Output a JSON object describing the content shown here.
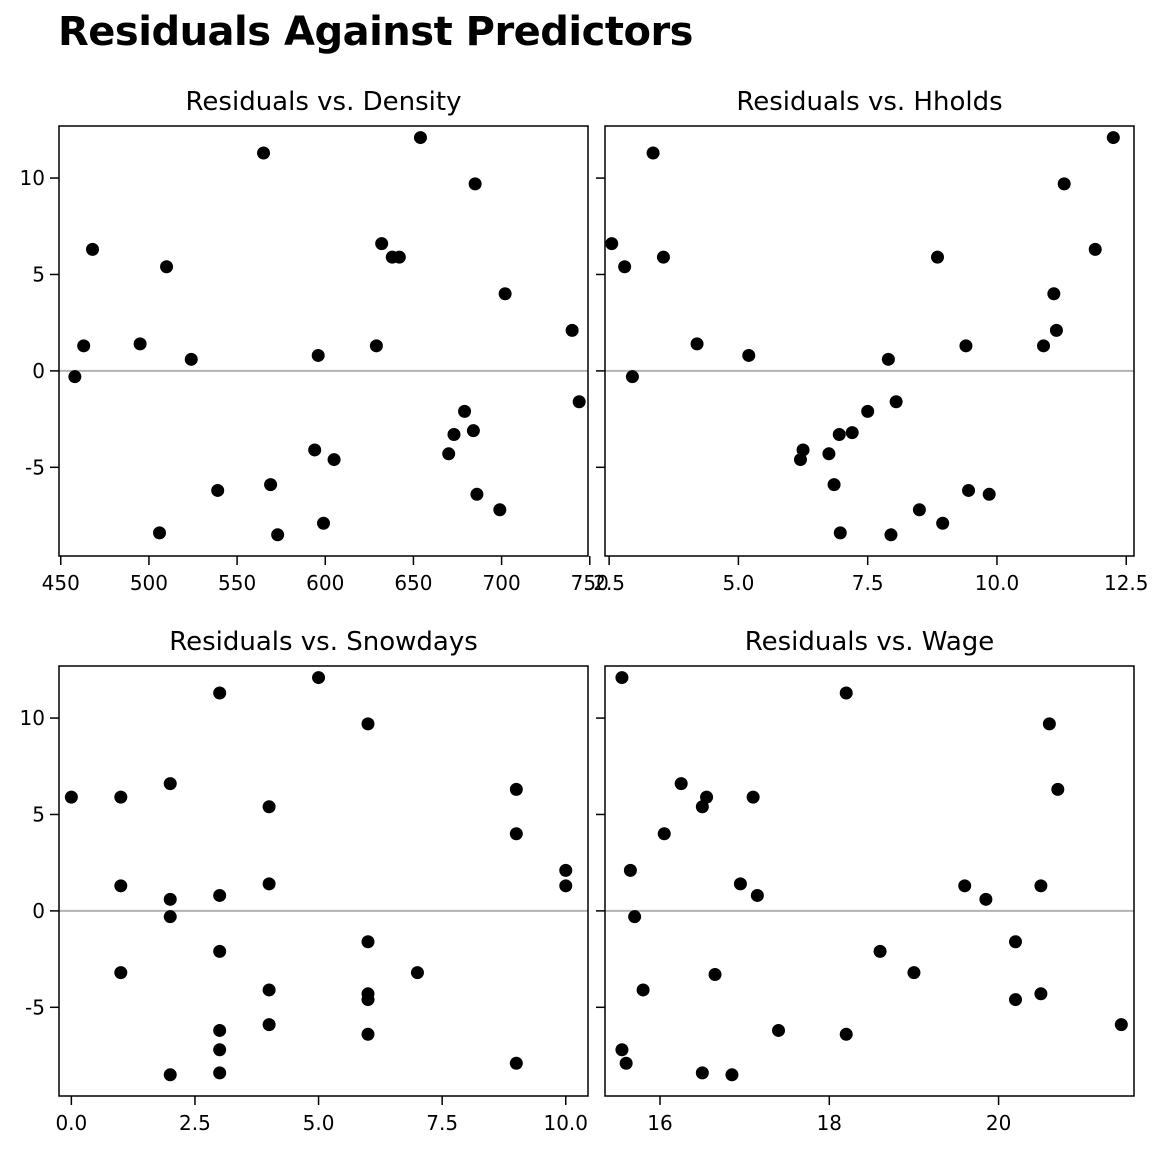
{
  "title": "Residuals Against Predictors",
  "colors": {
    "point": "#000000",
    "zero_line": "#b3b3b3",
    "frame": "#000000",
    "background": "#ffffff"
  },
  "chart_data": [
    {
      "type": "scatter",
      "title": "Residuals vs. Density",
      "xlabel": "",
      "ylabel": "",
      "xlim": [
        449,
        749
      ],
      "ylim": [
        -9.6,
        12.7
      ],
      "xticks": [
        450,
        500,
        550,
        600,
        650,
        700,
        750
      ],
      "xtick_labels": [
        "450",
        "500",
        "550",
        "600",
        "650",
        "700",
        "750"
      ],
      "yticks": [
        -5,
        0,
        5,
        10
      ],
      "ytick_labels": [
        "-5",
        "0",
        "5",
        "10"
      ],
      "reference_line_y": 0,
      "points": [
        [
          458,
          -0.3
        ],
        [
          463,
          1.3
        ],
        [
          468,
          6.3
        ],
        [
          495,
          1.4
        ],
        [
          506,
          -8.4
        ],
        [
          510,
          5.4
        ],
        [
          524,
          0.6
        ],
        [
          539,
          -6.2
        ],
        [
          565,
          11.3
        ],
        [
          569,
          -5.9
        ],
        [
          573,
          -8.5
        ],
        [
          594,
          -4.1
        ],
        [
          596,
          0.8
        ],
        [
          599,
          -7.9
        ],
        [
          605,
          -4.6
        ],
        [
          629,
          1.3
        ],
        [
          632,
          6.6
        ],
        [
          638,
          5.9
        ],
        [
          642,
          5.9
        ],
        [
          654,
          12.1
        ],
        [
          670,
          -4.3
        ],
        [
          673,
          -3.3
        ],
        [
          679,
          -2.1
        ],
        [
          684,
          -3.1
        ],
        [
          685,
          9.7
        ],
        [
          686,
          -6.4
        ],
        [
          699,
          -7.2
        ],
        [
          702,
          4.0
        ],
        [
          740,
          2.1
        ],
        [
          744,
          -1.6
        ]
      ]
    },
    {
      "type": "scatter",
      "title": "Residuals vs. Hholds",
      "xlabel": "",
      "ylabel": "",
      "xlim": [
        2.42,
        12.65
      ],
      "ylim": [
        -9.6,
        12.7
      ],
      "xticks": [
        2.5,
        5,
        7.5,
        10,
        12.5
      ],
      "xtick_labels": [
        "2.5",
        "5.0",
        "7.5",
        "10.0",
        "12.5"
      ],
      "yticks": [
        -5,
        0,
        5,
        10
      ],
      "ytick_labels": [
        "",
        "",
        "",
        ""
      ],
      "reference_line_y": 0,
      "points": [
        [
          2.55,
          6.6
        ],
        [
          2.8,
          5.4
        ],
        [
          2.95,
          -0.3
        ],
        [
          3.35,
          11.3
        ],
        [
          3.55,
          5.9
        ],
        [
          4.2,
          1.4
        ],
        [
          5.2,
          0.8
        ],
        [
          6.2,
          -4.6
        ],
        [
          6.25,
          -4.1
        ],
        [
          6.75,
          -4.3
        ],
        [
          6.85,
          -5.9
        ],
        [
          6.95,
          -3.3
        ],
        [
          6.97,
          -8.4
        ],
        [
          7.2,
          -3.2
        ],
        [
          7.5,
          -2.1
        ],
        [
          7.9,
          0.6
        ],
        [
          7.95,
          -8.5
        ],
        [
          8.05,
          -1.6
        ],
        [
          8.5,
          -7.2
        ],
        [
          8.85,
          5.9
        ],
        [
          8.95,
          -7.9
        ],
        [
          9.4,
          1.3
        ],
        [
          9.45,
          -6.2
        ],
        [
          9.85,
          -6.4
        ],
        [
          10.9,
          1.3
        ],
        [
          11.1,
          4.0
        ],
        [
          11.15,
          2.1
        ],
        [
          11.3,
          9.7
        ],
        [
          11.9,
          6.3
        ],
        [
          12.25,
          12.1
        ]
      ]
    },
    {
      "type": "scatter",
      "title": "Residuals vs. Snowdays",
      "xlabel": "",
      "ylabel": "",
      "xlim": [
        -0.25,
        10.45
      ],
      "ylim": [
        -9.6,
        12.7
      ],
      "xticks": [
        0,
        2.5,
        5,
        7.5,
        10
      ],
      "xtick_labels": [
        "0.0",
        "2.5",
        "5.0",
        "7.5",
        "10.0"
      ],
      "yticks": [
        -5,
        0,
        5,
        10
      ],
      "ytick_labels": [
        "-5",
        "0",
        "5",
        "10"
      ],
      "reference_line_y": 0,
      "points": [
        [
          0,
          5.9
        ],
        [
          1,
          5.9
        ],
        [
          1,
          1.3
        ],
        [
          1,
          -3.2
        ],
        [
          2,
          6.6
        ],
        [
          2,
          0.6
        ],
        [
          2,
          -0.3
        ],
        [
          2,
          -8.5
        ],
        [
          3,
          11.3
        ],
        [
          3,
          0.8
        ],
        [
          3,
          -2.1
        ],
        [
          3,
          -6.2
        ],
        [
          3,
          -7.2
        ],
        [
          3,
          -8.4
        ],
        [
          4,
          5.4
        ],
        [
          4,
          1.4
        ],
        [
          4,
          -4.1
        ],
        [
          4,
          -5.9
        ],
        [
          5,
          12.1
        ],
        [
          6,
          9.7
        ],
        [
          6,
          -1.6
        ],
        [
          6,
          -4.3
        ],
        [
          6,
          -4.6
        ],
        [
          6,
          -6.4
        ],
        [
          7,
          -3.2
        ],
        [
          9,
          6.3
        ],
        [
          9,
          4.0
        ],
        [
          9,
          -7.9
        ],
        [
          10,
          2.1
        ],
        [
          10,
          1.3
        ]
      ]
    },
    {
      "type": "scatter",
      "title": "Residuals vs. Wage",
      "xlabel": "",
      "ylabel": "",
      "xlim": [
        15.35,
        21.6
      ],
      "ylim": [
        -9.6,
        12.7
      ],
      "xticks": [
        16,
        18,
        20
      ],
      "xtick_labels": [
        "16",
        "18",
        "20"
      ],
      "yticks": [
        -5,
        0,
        5,
        10
      ],
      "ytick_labels": [
        "",
        "",
        "",
        ""
      ],
      "reference_line_y": 0,
      "points": [
        [
          15.55,
          12.1
        ],
        [
          15.55,
          -7.2
        ],
        [
          15.6,
          -7.9
        ],
        [
          15.65,
          2.1
        ],
        [
          15.7,
          -0.3
        ],
        [
          15.8,
          -4.1
        ],
        [
          16.05,
          4.0
        ],
        [
          16.25,
          6.6
        ],
        [
          16.5,
          5.4
        ],
        [
          16.55,
          5.9
        ],
        [
          16.5,
          -8.4
        ],
        [
          16.65,
          -3.3
        ],
        [
          16.85,
          -8.5
        ],
        [
          16.95,
          1.4
        ],
        [
          17.1,
          5.9
        ],
        [
          17.15,
          0.8
        ],
        [
          17.4,
          -6.2
        ],
        [
          18.2,
          11.3
        ],
        [
          18.2,
          -6.4
        ],
        [
          18.6,
          -2.1
        ],
        [
          19.0,
          -3.2
        ],
        [
          19.6,
          1.3
        ],
        [
          19.85,
          0.6
        ],
        [
          20.2,
          -1.6
        ],
        [
          20.2,
          -4.6
        ],
        [
          20.5,
          -4.3
        ],
        [
          20.5,
          1.3
        ],
        [
          20.6,
          9.7
        ],
        [
          20.7,
          6.3
        ],
        [
          21.45,
          -5.9
        ]
      ]
    }
  ]
}
